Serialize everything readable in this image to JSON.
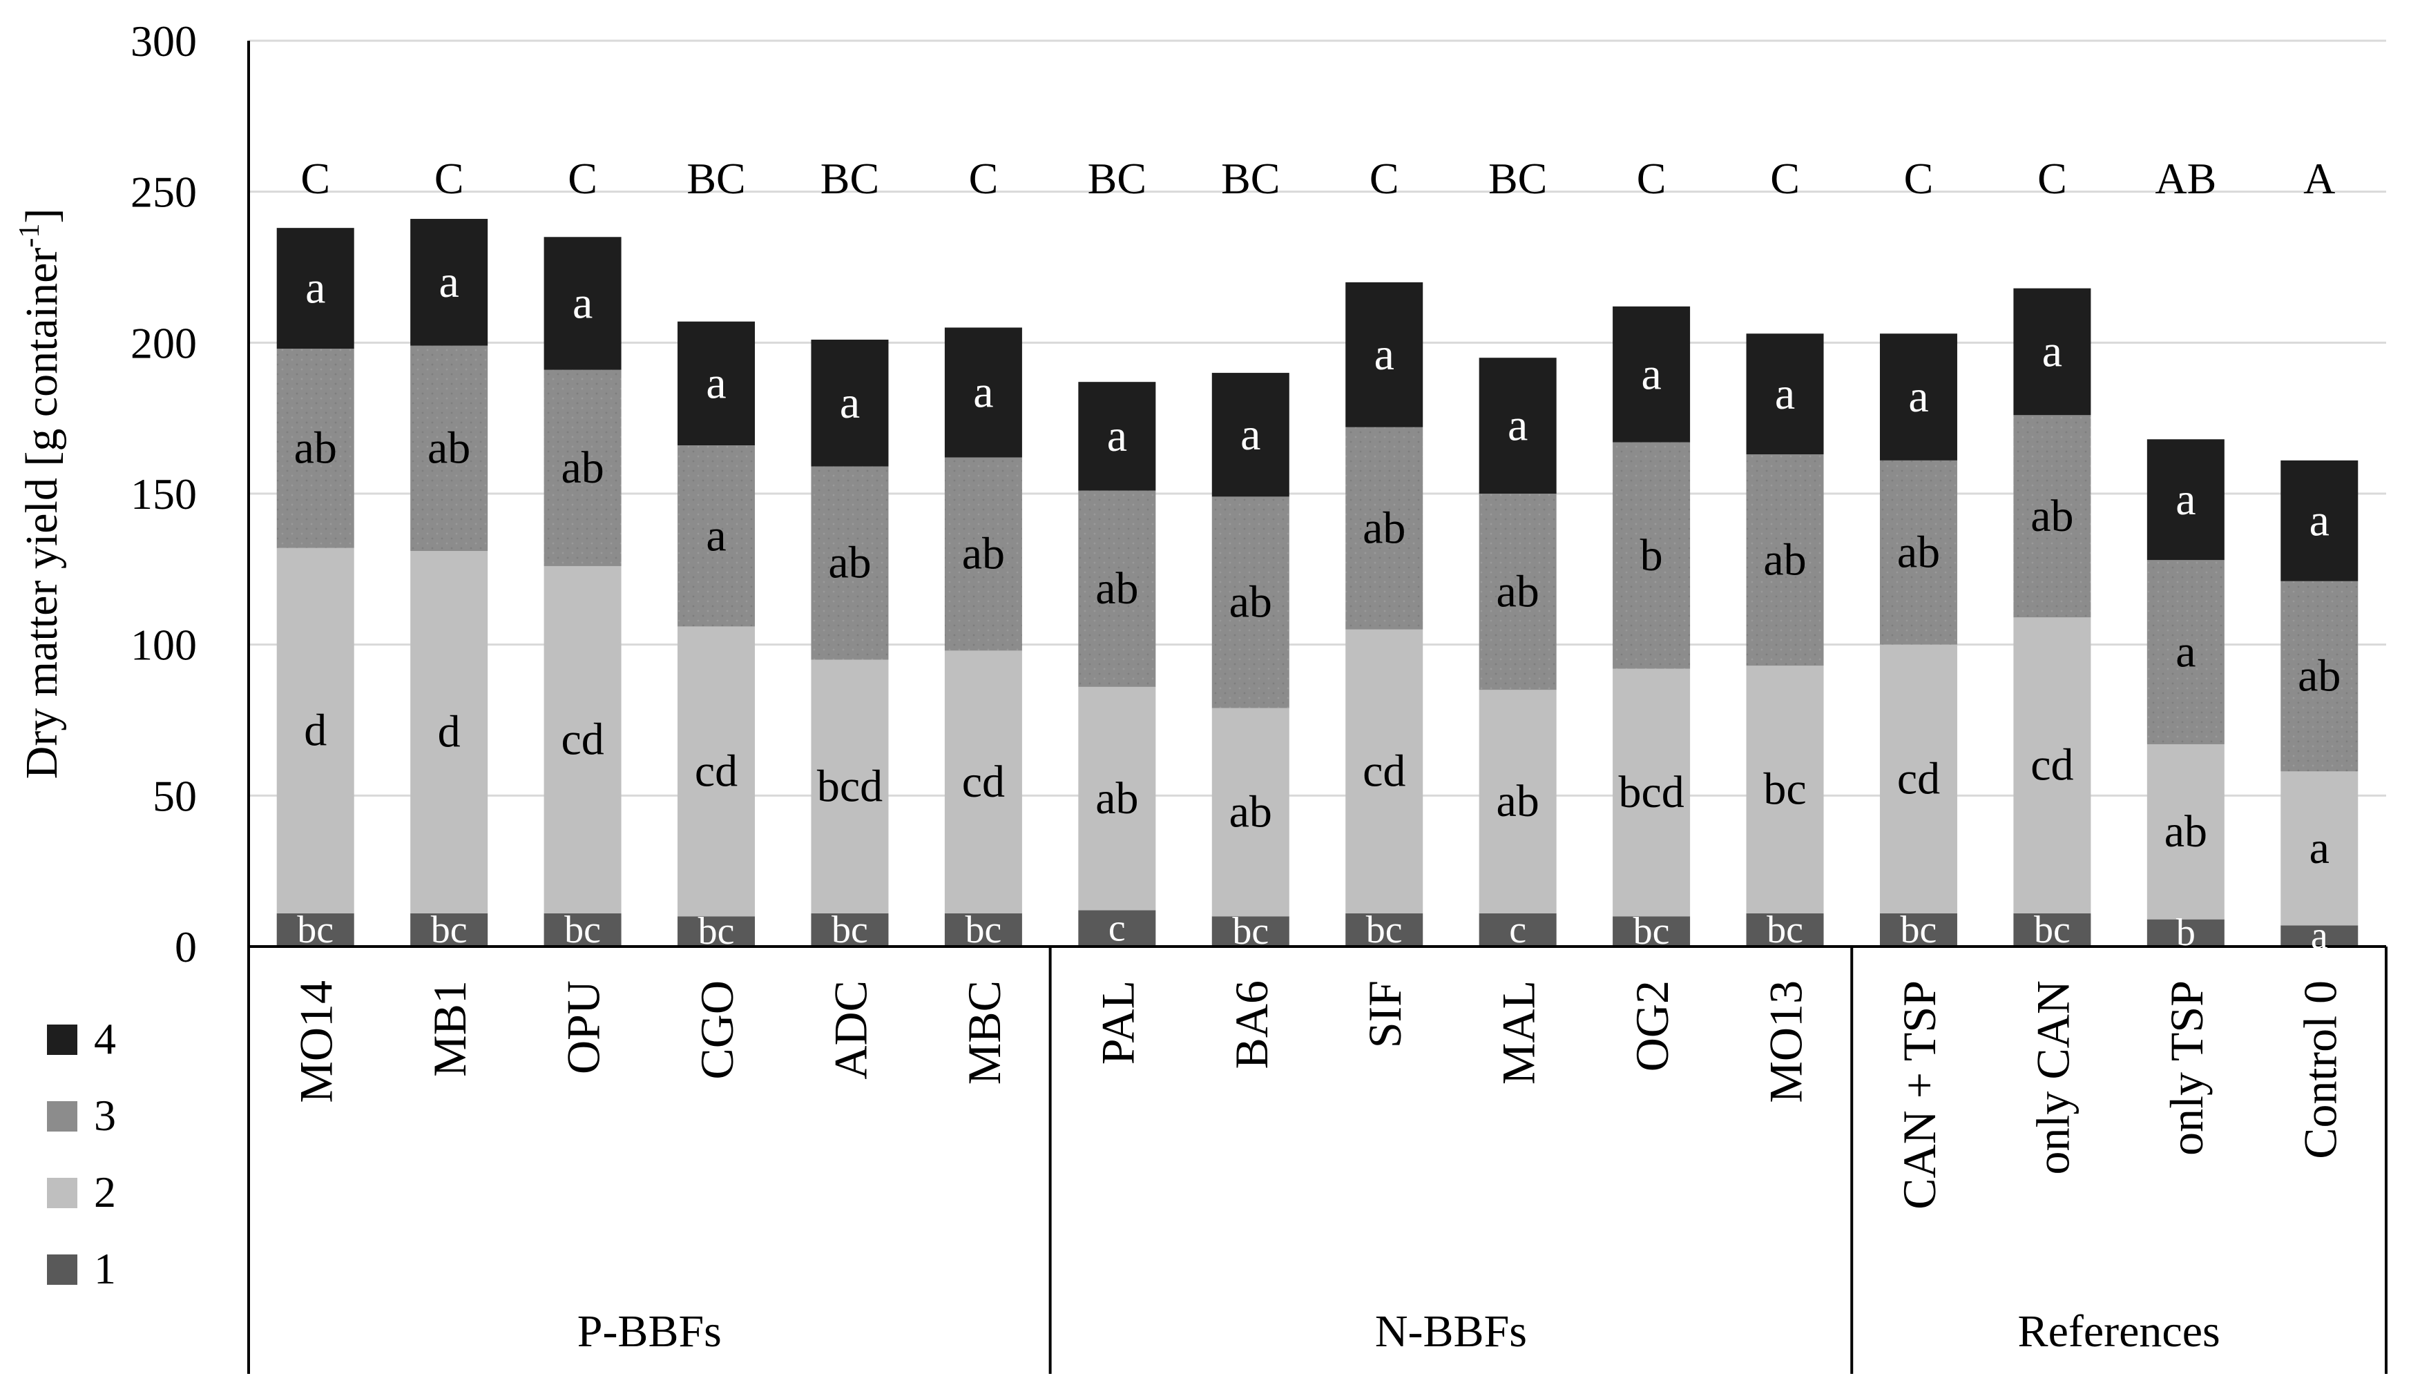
{
  "chart_data": {
    "type": "bar",
    "stacked": true,
    "ylabel": "Dry matter yield [g container",
    "ylabel_superscript": "-1",
    "ylabel_suffix": "]",
    "ylim": [
      0,
      300
    ],
    "yticks": [
      0,
      50,
      100,
      150,
      200,
      250,
      300
    ],
    "grid": true,
    "legend_position": "bottom-left",
    "categories": [
      "MO14",
      "MB1",
      "OPU",
      "CGO",
      "ADC",
      "MBC",
      "PAL",
      "BA6",
      "SIF",
      "MAL",
      "OG2",
      "MO13",
      "CAN + TSP",
      "only CAN",
      "only TSP",
      "Control 0"
    ],
    "groups": [
      {
        "label": "P-BBFs",
        "count": 6
      },
      {
        "label": "N-BBFs",
        "count": 6
      },
      {
        "label": "References",
        "count": 4
      }
    ],
    "series": [
      {
        "name": "1",
        "color": "#595959",
        "label_color": "#ffffff",
        "values": [
          11,
          11,
          11,
          10,
          11,
          11,
          12,
          10,
          11,
          11,
          10,
          11,
          11,
          11,
          9,
          7
        ],
        "letters": [
          "bc",
          "bc",
          "bc",
          "bc",
          "bc",
          "bc",
          "c",
          "bc",
          "bc",
          "c",
          "bc",
          "bc",
          "bc",
          "bc",
          "b",
          "a"
        ]
      },
      {
        "name": "2",
        "color": "#bfbfbf",
        "label_color": "#000000",
        "values": [
          121,
          120,
          115,
          96,
          84,
          87,
          74,
          69,
          94,
          74,
          82,
          82,
          89,
          98,
          58,
          51
        ],
        "letters": [
          "d",
          "d",
          "cd",
          "cd",
          "bcd",
          "cd",
          "ab",
          "ab",
          "cd",
          "ab",
          "bcd",
          "bc",
          "cd",
          "cd",
          "ab",
          "a"
        ]
      },
      {
        "name": "3",
        "color": "#8c8c8c",
        "label_color": "#000000",
        "values": [
          66,
          68,
          65,
          60,
          64,
          64,
          65,
          70,
          67,
          65,
          75,
          70,
          61,
          67,
          61,
          63
        ],
        "letters": [
          "ab",
          "ab",
          "ab",
          "a",
          "ab",
          "ab",
          "ab",
          "ab",
          "ab",
          "ab",
          "b",
          "ab",
          "ab",
          "ab",
          "a",
          "ab"
        ]
      },
      {
        "name": "4",
        "color": "#1e1e1e",
        "label_color": "#ffffff",
        "values": [
          40,
          42,
          44,
          41,
          42,
          43,
          36,
          41,
          48,
          45,
          45,
          40,
          42,
          42,
          40,
          40
        ],
        "letters": [
          "a",
          "a",
          "a",
          "a",
          "a",
          "a",
          "a",
          "a",
          "a",
          "a",
          "a",
          "a",
          "a",
          "a",
          "a",
          "a"
        ]
      }
    ],
    "totals": [
      238,
      241,
      235,
      207,
      201,
      205,
      187,
      190,
      220,
      195,
      212,
      203,
      203,
      218,
      168,
      161
    ],
    "total_letters": [
      "C",
      "C",
      "C",
      "BC",
      "BC",
      "C",
      "BC",
      "BC",
      "C",
      "BC",
      "C",
      "C",
      "C",
      "C",
      "AB",
      "A"
    ]
  }
}
